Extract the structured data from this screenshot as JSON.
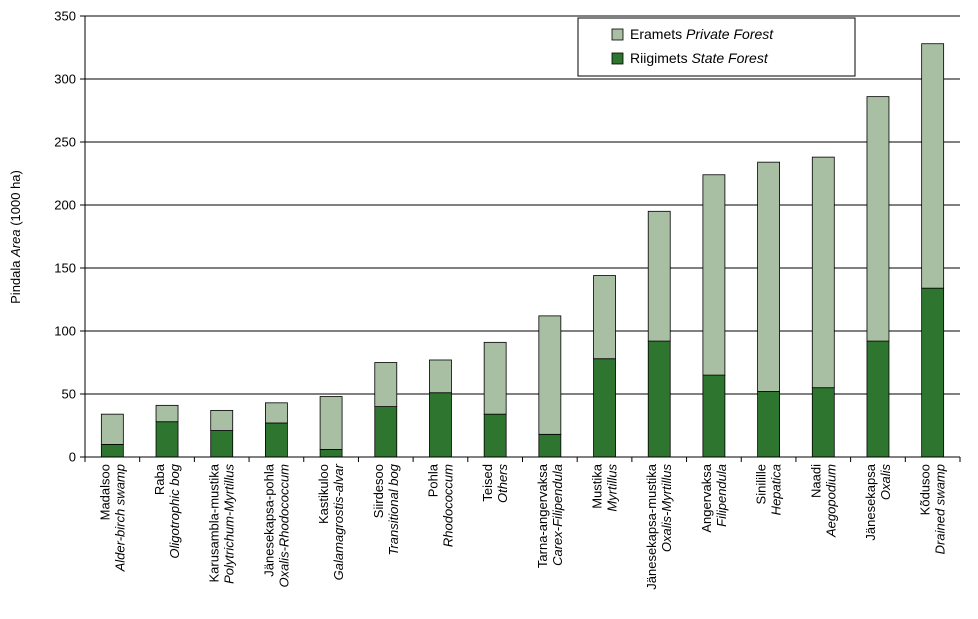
{
  "chart_data": {
    "type": "bar",
    "stacked": true,
    "ylabel": {
      "main": "Pindala ",
      "italic": "Area",
      "rest": " (1000 ha)"
    },
    "ylim": [
      0,
      350
    ],
    "yticks": [
      0,
      50,
      100,
      150,
      200,
      250,
      300,
      350
    ],
    "grid": "horizontal",
    "legend_position": "top-right",
    "categories": [
      {
        "et": "Madalsoo",
        "en": "Alder-birch swamp"
      },
      {
        "et": "Raba",
        "en": "Oligotrophic bog"
      },
      {
        "et": "Karusambla-mustika",
        "en": "Polytrichum-Myrtillus"
      },
      {
        "et": "Jänesekapsa-pohla",
        "en": "Oxalis-Rhodococcum"
      },
      {
        "et": "Kastikuloo",
        "en": "Galamagrostis-alvar"
      },
      {
        "et": "Siirdesoo",
        "en": "Transitional bog"
      },
      {
        "et": "Pohla",
        "en": "Rhodococcum"
      },
      {
        "et": "Teised",
        "en": "Others"
      },
      {
        "et": "Tarna-angervaksa",
        "en": "Carex-Filipendula"
      },
      {
        "et": "Mustika",
        "en": "Myrtillus"
      },
      {
        "et": "Jänesekapsa-mustika",
        "en": "Oxalis-Myrtillus"
      },
      {
        "et": "Angervaksa",
        "en": "Filipendula"
      },
      {
        "et": "Sinilille",
        "en": "Hepatica"
      },
      {
        "et": "Naadi",
        "en": "Aegopodium"
      },
      {
        "et": "Jänesekapsa",
        "en": "Oxalis"
      },
      {
        "et": "Kõdusoo",
        "en": "Drained swamp"
      }
    ],
    "series": [
      {
        "name_et": "Riigimets",
        "name_en": "State Forest",
        "color": "#2e7530",
        "values": [
          10,
          28,
          21,
          27,
          6,
          40,
          51,
          34,
          18,
          78,
          92,
          65,
          52,
          55,
          92,
          134
        ]
      },
      {
        "name_et": "Eramets",
        "name_en": "Private Forest",
        "color": "#a9bfa3",
        "values": [
          24,
          13,
          16,
          16,
          42,
          35,
          26,
          57,
          94,
          66,
          103,
          159,
          182,
          183,
          194,
          194
        ]
      }
    ]
  }
}
